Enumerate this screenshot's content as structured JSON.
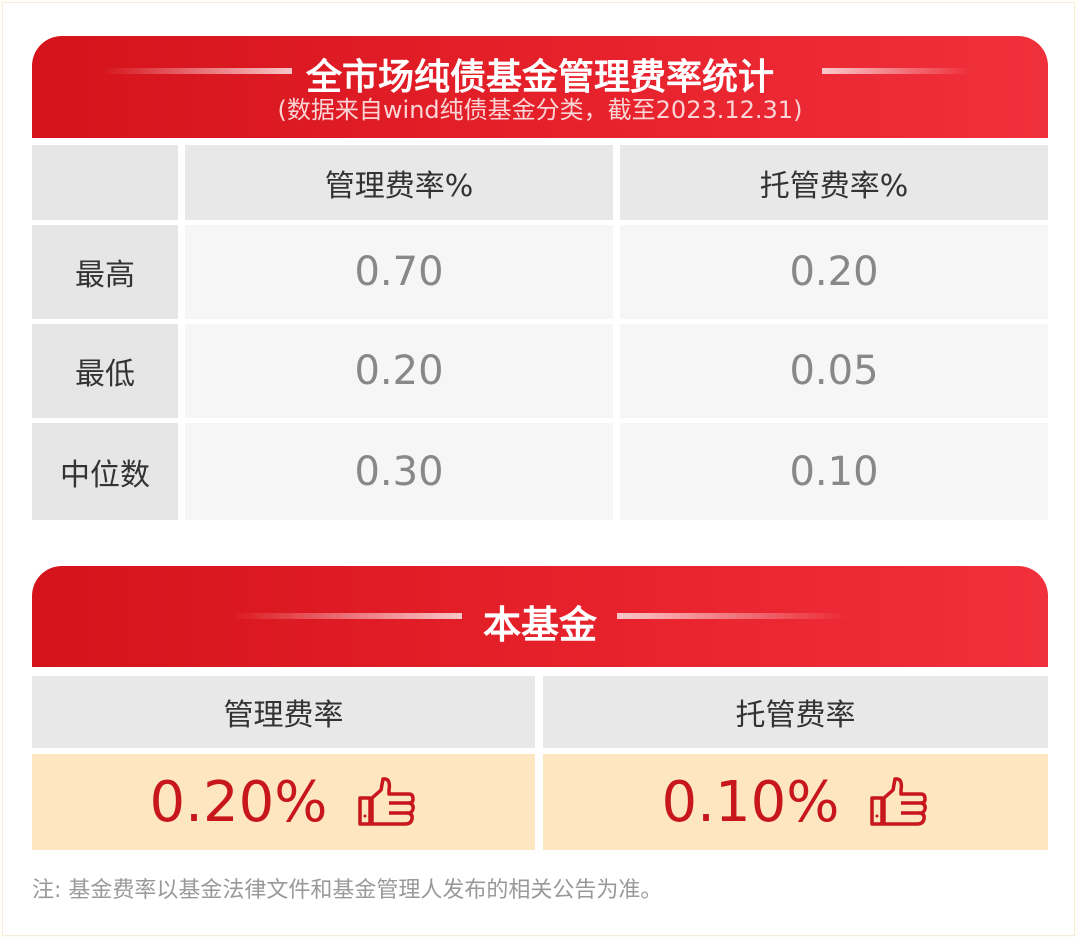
{
  "market": {
    "title": "全市场纯债基金管理费率统计",
    "subtitle": "(数据来自wind纯债基金分类，截至2023.12.31)",
    "columns": [
      "",
      "管理费率%",
      "托管费率%"
    ],
    "rows": [
      {
        "label": "最高",
        "management": "0.70",
        "custody": "0.20"
      },
      {
        "label": "最低",
        "management": "0.20",
        "custody": "0.05"
      },
      {
        "label": "中位数",
        "management": "0.30",
        "custody": "0.10"
      }
    ]
  },
  "fund": {
    "title": "本基金",
    "columns": [
      "管理费率",
      "托管费率"
    ],
    "values": [
      "0.20%",
      "0.10%"
    ],
    "icon": "thumbs-up-icon"
  },
  "note": "注: 基金费率以基金法律文件和基金管理人发布的相关公告为准。",
  "colors": {
    "accent": "#d4131b",
    "highlight_bg": "#fde6c0",
    "value_red": "#c8161d"
  }
}
